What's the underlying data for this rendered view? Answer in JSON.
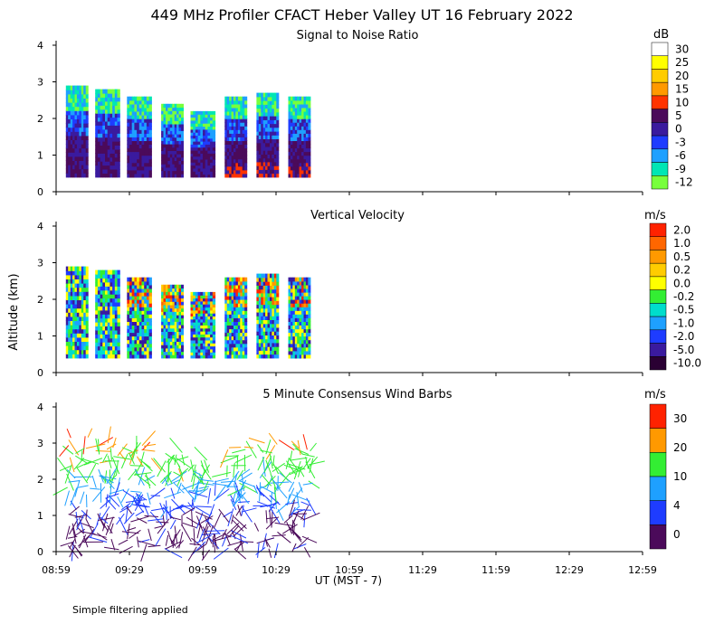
{
  "figure": {
    "title": "449 MHz Profiler CFACT Heber Valley UT 16 February 2022",
    "y_axis_label": "Altitude (km)",
    "x_axis_label": "UT  (MST - 7)",
    "footnote": "Simple filtering applied"
  },
  "chart_data": [
    {
      "type": "heatmap",
      "title": "Signal to Noise Ratio",
      "ylim": [
        0,
        4
      ],
      "yticks": [
        "0",
        "1",
        "2",
        "3",
        "4"
      ],
      "x_ticks": [
        "08:59",
        "09:29",
        "09:59",
        "10:29",
        "10:59",
        "11:29",
        "11:59",
        "12:29",
        "12:59"
      ],
      "colorbar": {
        "unit": "dB",
        "labels": [
          "30",
          "25",
          "20",
          "15",
          "10",
          "5",
          "0",
          "-3",
          "-6",
          "-9",
          "-12"
        ],
        "colors": [
          "#ffffff",
          "#ffff00",
          "#ffcc00",
          "#ff9900",
          "#ff3300",
          "#4b0a5a",
          "#3a1a9e",
          "#1e3cff",
          "#1ea0ff",
          "#00e6b4",
          "#78ff3c"
        ]
      },
      "segments": [
        {
          "start": "09:03",
          "end": "09:12",
          "top_km": 2.9
        },
        {
          "start": "09:15",
          "end": "09:25",
          "top_km": 2.8
        },
        {
          "start": "09:28",
          "end": "09:38",
          "top_km": 2.6
        },
        {
          "start": "09:42",
          "end": "09:51",
          "top_km": 2.4
        },
        {
          "start": "09:54",
          "end": "10:04",
          "top_km": 2.2
        },
        {
          "start": "10:08",
          "end": "10:17",
          "top_km": 2.6
        },
        {
          "start": "10:21",
          "end": "10:30",
          "top_km": 2.7
        },
        {
          "start": "10:34",
          "end": "10:43",
          "top_km": 2.6
        }
      ]
    },
    {
      "type": "heatmap",
      "title": "Vertical Velocity",
      "ylim": [
        0,
        4
      ],
      "yticks": [
        "0",
        "1",
        "2",
        "3",
        "4"
      ],
      "colorbar": {
        "unit": "m/s",
        "labels": [
          "2.0",
          "1.0",
          "0.5",
          "0.2",
          "0.0",
          "-0.2",
          "-0.5",
          "-1.0",
          "-2.0",
          "-5.0",
          "-10.0"
        ],
        "colors": [
          "#ff2200",
          "#ff6600",
          "#ff9900",
          "#ffcc00",
          "#ffff00",
          "#33ee33",
          "#00ddcc",
          "#1ea0ff",
          "#1e3cff",
          "#3a1a9e",
          "#2a0033"
        ]
      }
    },
    {
      "type": "scatter",
      "title": "5 Minute Consensus Wind Barbs",
      "ylim": [
        0,
        4
      ],
      "yticks": [
        "0",
        "1",
        "2",
        "3",
        "4"
      ],
      "colorbar": {
        "unit": "m/s",
        "labels": [
          "30",
          "20",
          "10",
          "4",
          "0"
        ],
        "colors": [
          "#ff2200",
          "#ff9900",
          "#33ee33",
          "#1ea0ff",
          "#1e3cff",
          "#4b0a5a"
        ]
      }
    }
  ]
}
